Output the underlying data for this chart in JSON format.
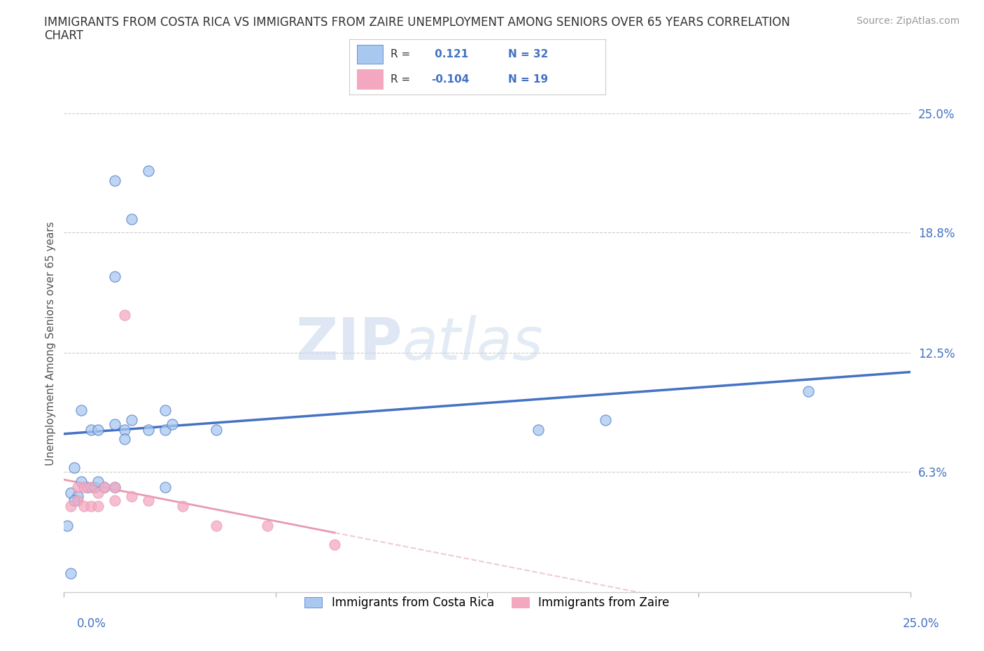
{
  "title_line1": "IMMIGRANTS FROM COSTA RICA VS IMMIGRANTS FROM ZAIRE UNEMPLOYMENT AMONG SENIORS OVER 65 YEARS CORRELATION",
  "title_line2": "CHART",
  "source_text": "Source: ZipAtlas.com",
  "ylabel": "Unemployment Among Seniors over 65 years",
  "xlim": [
    0.0,
    25.0
  ],
  "ylim": [
    0.0,
    26.0
  ],
  "ytick_labels": [
    "25.0%",
    "18.8%",
    "12.5%",
    "6.3%"
  ],
  "ytick_values": [
    25.0,
    18.8,
    12.5,
    6.3
  ],
  "xtick_left_label": "0.0%",
  "xtick_right_label": "25.0%",
  "background_color": "#ffffff",
  "watermark_text1": "ZIP",
  "watermark_text2": "atlas",
  "legend_R1_label": "R = ",
  "legend_R1_val": " 0.121",
  "legend_N1": "N = 32",
  "legend_R2_label": "R = ",
  "legend_R2_val": "-0.104",
  "legend_N2": "N = 19",
  "color_costa_rica": "#a8c8f0",
  "color_zaire": "#f4a8c0",
  "line_color_costa_rica": "#4472c4",
  "line_color_zaire_solid": "#e899b4",
  "line_color_zaire_dash": "#e8b4c8",
  "costa_rica_x": [
    1.5,
    2.5,
    2.0,
    1.5,
    1.8,
    4.5,
    2.0,
    3.0,
    3.2,
    0.5,
    0.8,
    1.0,
    1.5,
    1.8,
    2.5,
    3.0,
    0.3,
    0.5,
    0.7,
    0.9,
    1.0,
    1.2,
    1.5,
    0.2,
    0.4,
    0.3,
    0.1,
    0.2,
    22.0,
    14.0,
    16.0,
    3.0
  ],
  "costa_rica_y": [
    21.5,
    22.0,
    19.5,
    16.5,
    8.5,
    8.5,
    9.0,
    8.5,
    8.8,
    9.5,
    8.5,
    8.5,
    8.8,
    8.0,
    8.5,
    9.5,
    6.5,
    5.8,
    5.5,
    5.5,
    5.8,
    5.5,
    5.5,
    5.2,
    5.0,
    4.8,
    3.5,
    1.0,
    10.5,
    8.5,
    9.0,
    5.5
  ],
  "zaire_x": [
    1.8,
    0.4,
    0.6,
    0.8,
    1.0,
    1.2,
    1.5,
    0.2,
    0.4,
    0.6,
    0.8,
    1.0,
    1.5,
    2.0,
    2.5,
    3.5,
    4.5,
    6.0,
    8.0
  ],
  "zaire_y": [
    14.5,
    5.5,
    5.5,
    5.5,
    5.2,
    5.5,
    5.5,
    4.5,
    4.8,
    4.5,
    4.5,
    4.5,
    4.8,
    5.0,
    4.8,
    4.5,
    3.5,
    3.5,
    2.5
  ],
  "title_fontsize": 12,
  "axis_label_fontsize": 11,
  "tick_fontsize": 12,
  "legend_fontsize": 12,
  "watermark_fontsize": 60,
  "source_fontsize": 10
}
